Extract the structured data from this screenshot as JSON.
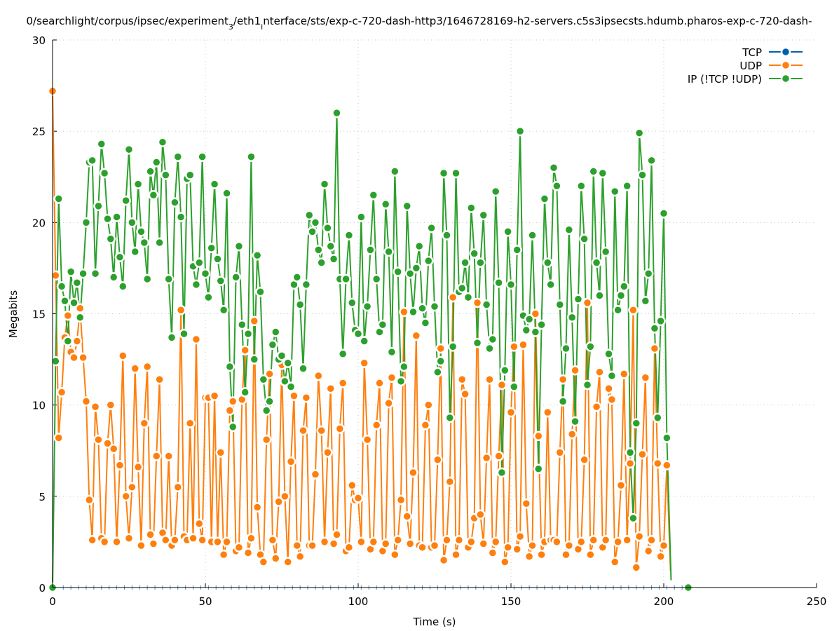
{
  "chart_data": {
    "type": "line",
    "title_parts": [
      {
        "text": "0/searchlight/corpus/ipsec/experiment",
        "sub": false
      },
      {
        "text": "3",
        "sub": true
      },
      {
        "text": "/eth1",
        "sub": false
      },
      {
        "text": "i",
        "sub": true
      },
      {
        "text": "nterface/sts/exp-c-720-dash-http3/1646728169-h2-servers.c5s3ipsecsts.hdumb.pharos-exp-c-720-dash-",
        "sub": false
      }
    ],
    "xlabel": "Time (s)",
    "ylabel": "Megabits",
    "xlim": [
      0,
      250
    ],
    "ylim": [
      0,
      30
    ],
    "xticks": [
      0,
      50,
      100,
      150,
      200,
      250
    ],
    "yticks": [
      0,
      5,
      10,
      15,
      20,
      25,
      30
    ],
    "grid": true,
    "legend_position": "top-right",
    "series": [
      {
        "name": "TCP",
        "color": "#0060ad",
        "x_start": 1,
        "x_step": 2.5,
        "count": 83,
        "constant_value": 0
      },
      {
        "name": "UDP",
        "color": "#ff7f0e",
        "x_start": 0,
        "x_step": 1,
        "values": [
          27.2,
          17.1,
          8.2,
          10.7,
          13.7,
          14.9,
          12.9,
          12.6,
          13.5,
          15.3,
          12.6,
          10.2,
          4.8,
          2.6,
          9.9,
          8.1,
          2.7,
          2.5,
          7.9,
          10,
          7.6,
          2.5,
          6.7,
          12.7,
          5,
          2.7,
          5.5,
          12,
          6.6,
          2.3,
          9,
          12.1,
          2.9,
          2.4,
          7.2,
          11.4,
          3,
          2.6,
          7.2,
          2.3,
          2.6,
          5.5,
          15.2,
          2.8,
          2.6,
          9,
          2.7,
          13.6,
          3.5,
          2.6,
          10.4,
          10.4,
          2.5,
          10.5,
          2.5,
          7.4,
          1.8,
          2.5,
          9.7,
          10.2,
          2,
          2.2,
          10.3,
          13,
          1.9,
          2.7,
          14.6,
          4.4,
          1.8,
          1.4,
          8.1,
          11.7,
          2.6,
          1.6,
          4.7,
          12.2,
          5,
          1.4,
          6.9,
          10.5,
          2.3,
          1.7,
          8.6,
          10.4,
          2.3,
          2.3,
          6.2,
          11.6,
          8.6,
          2.5,
          7.4,
          10.9,
          2.4,
          2.9,
          8.7,
          11.2,
          2,
          2.2,
          5.6,
          4.8,
          4.9,
          2.5,
          12.3,
          8.1,
          2.1,
          2.5,
          8.9,
          11.2,
          2,
          2.4,
          10.1,
          11.5,
          1.8,
          2.6,
          4.8,
          15.1,
          3.9,
          2.4,
          6.3,
          13.8,
          2.3,
          2.2,
          8.9,
          10,
          2.2,
          2.3,
          7,
          13.1,
          1.5,
          2.6,
          5.8,
          15.9,
          1.8,
          2.6,
          11.4,
          10.6,
          2.2,
          2.5,
          3.8,
          15.6,
          4,
          2.4,
          7.1,
          11.4,
          1.9,
          2.5,
          7.2,
          11.1,
          1.4,
          2.2,
          9.6,
          13.2,
          2.1,
          2.8,
          13.3,
          4.6,
          1.7,
          2.3,
          15,
          8.3,
          1.8,
          2.5,
          9.6,
          2.6,
          2.6,
          2.5,
          7.4,
          11.4,
          1.8,
          2.3,
          8.4,
          11.9,
          2.1,
          2.5,
          7,
          15.6,
          1.8,
          2.6,
          9.9,
          11.8,
          2.2,
          2.6,
          10.9,
          10.3,
          1.4,
          2.5,
          5.6,
          11.7,
          2.6,
          6.8,
          15.2,
          1.1,
          2.8,
          7.3,
          11.5,
          2,
          2.6,
          13.1,
          6.8,
          1.7,
          2.3,
          6.7
        ],
        "trailing_points": [
          [
            202.2,
            0.9
          ]
        ],
        "extra_points": []
      },
      {
        "name": "IP (!TCP  !UDP)",
        "color": "#2ca02c",
        "x_start": 0,
        "x_step": 1,
        "values": [
          0,
          12.4,
          21.3,
          16.5,
          15.7,
          13.5,
          17.3,
          15.6,
          16.7,
          14.8,
          17.2,
          20,
          23.3,
          23.4,
          17.2,
          20.9,
          24.3,
          22.7,
          20.2,
          19.1,
          17,
          20.3,
          18.1,
          16.5,
          21.2,
          24,
          20,
          18.4,
          22.1,
          19.5,
          18.9,
          16.9,
          22.8,
          21.5,
          23.3,
          18.9,
          24.4,
          22.6,
          16.9,
          13.7,
          21.1,
          23.6,
          20.3,
          13.9,
          22.4,
          22.6,
          17.6,
          16.6,
          17.8,
          23.6,
          17.2,
          15.9,
          18.6,
          22.1,
          18,
          16.8,
          15.2,
          21.6,
          12.1,
          8.8,
          17,
          18.7,
          14.4,
          10.7,
          13.9,
          23.6,
          12.5,
          18.2,
          16.2,
          11.4,
          9.7,
          10.2,
          13.3,
          14,
          12.5,
          12.7,
          11.3,
          12.3,
          11,
          16.6,
          17,
          15.5,
          12,
          16.6,
          20.4,
          19.5,
          20,
          18.5,
          17.8,
          22.1,
          19.7,
          18.7,
          18,
          26,
          16.9,
          12.8,
          16.9,
          19.3,
          15.6,
          14.1,
          13.9,
          20.3,
          13.5,
          15.4,
          18.5,
          21.5,
          16.9,
          14,
          14.4,
          21,
          18.4,
          12.9,
          22.8,
          17.3,
          11.3,
          12.1,
          20.9,
          17.2,
          15.1,
          17.5,
          18.7,
          15.3,
          14.5,
          17.9,
          19.7,
          15.4,
          11.8,
          12.4,
          22.7,
          19.3,
          9.3,
          13.2,
          22.7,
          16.2,
          16.4,
          17.8,
          15.9,
          20.8,
          18.3,
          13.4,
          17.8,
          20.4,
          15.5,
          13.1,
          13.6,
          21.7,
          16.7,
          6.3,
          11.9,
          19.5,
          16.6,
          11,
          18.5,
          25,
          14.9,
          14.1,
          14.7,
          19.3,
          14,
          6.5,
          14.4,
          21.3,
          17.8,
          16.6,
          23,
          22,
          15.5,
          10.2,
          13.1,
          19.6,
          14.8,
          9.1,
          15.8,
          22,
          19.1,
          11.1,
          13.2,
          22.8,
          17.8,
          16,
          22.7,
          18.4,
          12.8,
          11.6,
          21.7,
          15.2,
          16,
          16.5,
          22,
          7.4,
          3.8,
          9,
          24.9,
          22.6,
          15.7,
          17.2,
          23.4,
          14.2,
          9.3,
          14.6,
          20.5,
          8.2
        ],
        "trailing_points": [
          [
            202.4,
            0.4
          ]
        ],
        "extra_points": [
          [
            208,
            0
          ]
        ]
      }
    ]
  }
}
